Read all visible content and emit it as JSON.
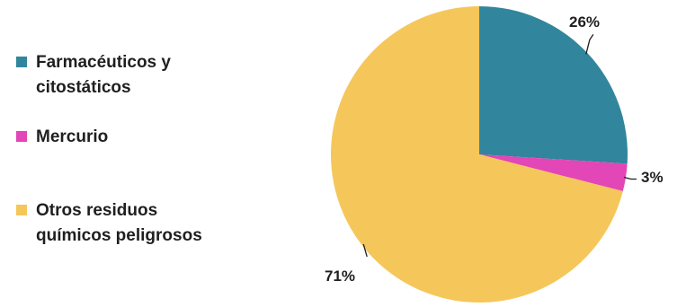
{
  "chart_data": {
    "type": "pie",
    "slices": [
      {
        "name_lines": [
          "Farmacéuticos y",
          "citostáticos"
        ],
        "value": 26,
        "label": "26%",
        "color": "#31859c"
      },
      {
        "name_lines": [
          "Mercurio"
        ],
        "value": 3,
        "label": "3%",
        "color": "#e346b6"
      },
      {
        "name_lines": [
          "Otros residuos",
          "químicos peligrosos"
        ],
        "value": 71,
        "label": "71%",
        "color": "#f5c75a"
      }
    ],
    "legend_position": "left"
  }
}
